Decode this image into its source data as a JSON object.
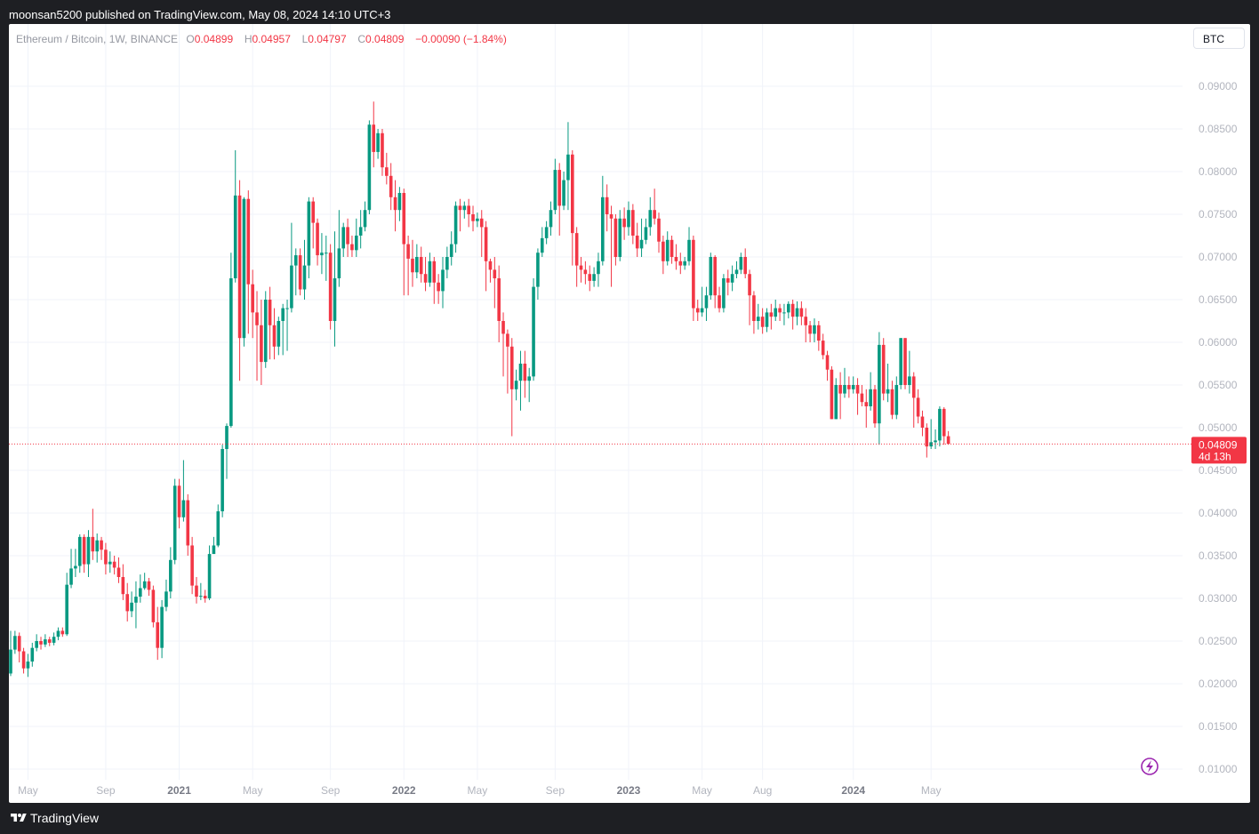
{
  "header": {
    "publisher_line": "moonsan5200 published on TradingView.com, May 08, 2024 14:10 UTC+3"
  },
  "legend": {
    "symbol": "Ethereum / Bitcoin, 1W, BINANCE",
    "open_label": "O",
    "open": "0.04899",
    "high_label": "H",
    "high": "0.04957",
    "low_label": "L",
    "low": "0.04797",
    "close_label": "C",
    "close": "0.04809",
    "change": "−0.00090 (−1.84%)"
  },
  "currency_button": "BTC",
  "price_tag": {
    "price": "0.04809",
    "countdown": "4d 13h"
  },
  "footer": {
    "brand": "TradingView"
  },
  "colors": {
    "up": "#089981",
    "down": "#f23645",
    "grid": "#f0f3fa",
    "axis_text": "#b2b5be"
  },
  "chart_data": {
    "type": "candlestick",
    "title": "Ethereum / Bitcoin, 1W, BINANCE",
    "timeframe": "1W",
    "ylim": [
      0.0088,
      0.0975
    ],
    "y_ticks": [
      "0.09000",
      "0.08500",
      "0.08000",
      "0.07500",
      "0.07000",
      "0.06500",
      "0.06000",
      "0.05500",
      "0.05000",
      "0.04500",
      "0.04000",
      "0.03500",
      "0.03000",
      "0.02500",
      "0.02000",
      "0.01500",
      "0.01000"
    ],
    "x_ticks": [
      {
        "label": "May",
        "i": 4,
        "bold": false
      },
      {
        "label": "Sep",
        "i": 22,
        "bold": false
      },
      {
        "label": "2021",
        "i": 39,
        "bold": true
      },
      {
        "label": "May",
        "i": 56,
        "bold": false
      },
      {
        "label": "Sep",
        "i": 74,
        "bold": false
      },
      {
        "label": "2022",
        "i": 91,
        "bold": true
      },
      {
        "label": "May",
        "i": 108,
        "bold": false
      },
      {
        "label": "Sep",
        "i": 126,
        "bold": false
      },
      {
        "label": "2023",
        "i": 143,
        "bold": true
      },
      {
        "label": "May",
        "i": 160,
        "bold": false
      },
      {
        "label": "Aug",
        "i": 174,
        "bold": false
      },
      {
        "label": "2024",
        "i": 195,
        "bold": true
      },
      {
        "label": "May",
        "i": 213,
        "bold": false
      }
    ],
    "last_price": 0.04809,
    "candles": [
      [
        0.0212,
        0.024,
        0.0262,
        0.0209
      ],
      [
        0.024,
        0.0256,
        0.0262,
        0.0235
      ],
      [
        0.0256,
        0.0238,
        0.026,
        0.0225
      ],
      [
        0.0238,
        0.0218,
        0.0242,
        0.0212
      ],
      [
        0.0218,
        0.0226,
        0.0235,
        0.0208
      ],
      [
        0.0226,
        0.0242,
        0.0248,
        0.022
      ],
      [
        0.0242,
        0.025,
        0.0258,
        0.0238
      ],
      [
        0.025,
        0.0246,
        0.0255,
        0.024
      ],
      [
        0.0246,
        0.0252,
        0.0258,
        0.0243
      ],
      [
        0.0252,
        0.0248,
        0.0255,
        0.0244
      ],
      [
        0.0248,
        0.0255,
        0.026,
        0.0245
      ],
      [
        0.0255,
        0.0262,
        0.0266,
        0.0251
      ],
      [
        0.0262,
        0.0258,
        0.0266,
        0.0255
      ],
      [
        0.0258,
        0.0316,
        0.033,
        0.0256
      ],
      [
        0.0316,
        0.0335,
        0.0358,
        0.0312
      ],
      [
        0.0335,
        0.0338,
        0.0358,
        0.0325
      ],
      [
        0.0338,
        0.0372,
        0.0375,
        0.033
      ],
      [
        0.0372,
        0.034,
        0.0375,
        0.033
      ],
      [
        0.034,
        0.0372,
        0.038,
        0.0325
      ],
      [
        0.0372,
        0.0355,
        0.0405,
        0.0345
      ],
      [
        0.0355,
        0.0368,
        0.0376,
        0.0342
      ],
      [
        0.0368,
        0.0357,
        0.0372,
        0.0345
      ],
      [
        0.0357,
        0.034,
        0.0365,
        0.0328
      ],
      [
        0.034,
        0.0343,
        0.0355,
        0.033
      ],
      [
        0.0343,
        0.0336,
        0.035,
        0.0328
      ],
      [
        0.0336,
        0.0325,
        0.0348,
        0.0318
      ],
      [
        0.0325,
        0.0305,
        0.034,
        0.0298
      ],
      [
        0.0305,
        0.0285,
        0.0318,
        0.0273
      ],
      [
        0.0285,
        0.0295,
        0.0308,
        0.0278
      ],
      [
        0.0295,
        0.0302,
        0.032,
        0.0265
      ],
      [
        0.0302,
        0.0312,
        0.0328,
        0.0295
      ],
      [
        0.0312,
        0.032,
        0.033,
        0.031
      ],
      [
        0.032,
        0.031,
        0.0324,
        0.0303
      ],
      [
        0.031,
        0.0272,
        0.0315,
        0.0266
      ],
      [
        0.0272,
        0.0242,
        0.029,
        0.0228
      ],
      [
        0.0242,
        0.029,
        0.0298,
        0.023
      ],
      [
        0.029,
        0.0308,
        0.0322,
        0.0285
      ],
      [
        0.0308,
        0.0345,
        0.036,
        0.03
      ],
      [
        0.0345,
        0.0432,
        0.044,
        0.034
      ],
      [
        0.0432,
        0.0395,
        0.044,
        0.0382
      ],
      [
        0.0395,
        0.0415,
        0.0462,
        0.039
      ],
      [
        0.0415,
        0.0362,
        0.0422,
        0.035
      ],
      [
        0.0362,
        0.0315,
        0.0372,
        0.0305
      ],
      [
        0.0315,
        0.0302,
        0.0325,
        0.0294
      ],
      [
        0.0302,
        0.0303,
        0.0318,
        0.0298
      ],
      [
        0.0303,
        0.03,
        0.031,
        0.0295
      ],
      [
        0.03,
        0.0352,
        0.0362,
        0.0298
      ],
      [
        0.0352,
        0.0362,
        0.0372,
        0.0355
      ],
      [
        0.0362,
        0.0402,
        0.041,
        0.036
      ],
      [
        0.0402,
        0.0475,
        0.048,
        0.0395
      ],
      [
        0.0475,
        0.0502,
        0.0505,
        0.044
      ],
      [
        0.0502,
        0.0675,
        0.0705,
        0.05
      ],
      [
        0.0675,
        0.0772,
        0.0825,
        0.067
      ],
      [
        0.0772,
        0.0605,
        0.079,
        0.0555
      ],
      [
        0.0605,
        0.0768,
        0.077,
        0.0595
      ],
      [
        0.0768,
        0.0668,
        0.0778,
        0.061
      ],
      [
        0.0668,
        0.0635,
        0.0685,
        0.0605
      ],
      [
        0.0635,
        0.062,
        0.066,
        0.0555
      ],
      [
        0.062,
        0.0577,
        0.065,
        0.055
      ],
      [
        0.0577,
        0.065,
        0.066,
        0.057
      ],
      [
        0.065,
        0.062,
        0.0665,
        0.058
      ],
      [
        0.062,
        0.0595,
        0.064,
        0.058
      ],
      [
        0.0595,
        0.0625,
        0.063,
        0.0585
      ],
      [
        0.0625,
        0.064,
        0.0645,
        0.0585
      ],
      [
        0.064,
        0.064,
        0.065,
        0.059
      ],
      [
        0.064,
        0.069,
        0.074,
        0.0635
      ],
      [
        0.069,
        0.0702,
        0.071,
        0.0655
      ],
      [
        0.0702,
        0.0662,
        0.071,
        0.0655
      ],
      [
        0.0662,
        0.069,
        0.072,
        0.065
      ],
      [
        0.069,
        0.0765,
        0.077,
        0.0675
      ],
      [
        0.0765,
        0.074,
        0.077,
        0.071
      ],
      [
        0.074,
        0.0702,
        0.0745,
        0.069
      ],
      [
        0.0702,
        0.0705,
        0.0728,
        0.068
      ],
      [
        0.0705,
        0.0705,
        0.0725,
        0.0672
      ],
      [
        0.0705,
        0.0625,
        0.0715,
        0.0615
      ],
      [
        0.0625,
        0.0675,
        0.073,
        0.0595
      ],
      [
        0.0675,
        0.071,
        0.0755,
        0.0665
      ],
      [
        0.071,
        0.0735,
        0.074,
        0.07
      ],
      [
        0.0735,
        0.0715,
        0.0745,
        0.07
      ],
      [
        0.0715,
        0.0708,
        0.0725,
        0.07
      ],
      [
        0.0708,
        0.0725,
        0.0745,
        0.07
      ],
      [
        0.0725,
        0.0735,
        0.0755,
        0.071
      ],
      [
        0.0735,
        0.0755,
        0.0765,
        0.073
      ],
      [
        0.0755,
        0.0855,
        0.086,
        0.075
      ],
      [
        0.0855,
        0.0823,
        0.0882,
        0.0805
      ],
      [
        0.0823,
        0.0845,
        0.085,
        0.0815
      ],
      [
        0.0845,
        0.0805,
        0.085,
        0.0795
      ],
      [
        0.0805,
        0.0795,
        0.0822,
        0.0785
      ],
      [
        0.0795,
        0.077,
        0.081,
        0.0755
      ],
      [
        0.077,
        0.0755,
        0.079,
        0.073
      ],
      [
        0.0755,
        0.0775,
        0.0782,
        0.0742
      ],
      [
        0.0775,
        0.0715,
        0.078,
        0.0655
      ],
      [
        0.0715,
        0.0698,
        0.0725,
        0.0655
      ],
      [
        0.0698,
        0.0682,
        0.072,
        0.0665
      ],
      [
        0.0682,
        0.07,
        0.0715,
        0.0675
      ],
      [
        0.07,
        0.068,
        0.0712,
        0.067
      ],
      [
        0.068,
        0.067,
        0.07,
        0.066
      ],
      [
        0.067,
        0.0695,
        0.0705,
        0.0665
      ],
      [
        0.0695,
        0.067,
        0.07,
        0.0645
      ],
      [
        0.067,
        0.066,
        0.068,
        0.0645
      ],
      [
        0.066,
        0.0685,
        0.07,
        0.064
      ],
      [
        0.0685,
        0.07,
        0.0712,
        0.0675
      ],
      [
        0.07,
        0.0715,
        0.073,
        0.069
      ],
      [
        0.0715,
        0.076,
        0.0765,
        0.0705
      ],
      [
        0.076,
        0.0755,
        0.0768,
        0.073
      ],
      [
        0.0755,
        0.076,
        0.0765,
        0.0745
      ],
      [
        0.076,
        0.075,
        0.0768,
        0.0735
      ],
      [
        0.075,
        0.0742,
        0.076,
        0.073
      ],
      [
        0.0742,
        0.0745,
        0.0752,
        0.0735
      ],
      [
        0.0745,
        0.0735,
        0.0755,
        0.07
      ],
      [
        0.0735,
        0.0695,
        0.0742,
        0.066
      ],
      [
        0.0695,
        0.0685,
        0.0698,
        0.067
      ],
      [
        0.0685,
        0.0675,
        0.07,
        0.064
      ],
      [
        0.0675,
        0.0625,
        0.069,
        0.06
      ],
      [
        0.0625,
        0.061,
        0.0635,
        0.056
      ],
      [
        0.061,
        0.0595,
        0.0615,
        0.054
      ],
      [
        0.0595,
        0.0545,
        0.0605,
        0.049
      ],
      [
        0.0545,
        0.0555,
        0.0568,
        0.0532
      ],
      [
        0.0555,
        0.0575,
        0.059,
        0.052
      ],
      [
        0.0575,
        0.0555,
        0.059,
        0.0535
      ],
      [
        0.0555,
        0.056,
        0.057,
        0.053
      ],
      [
        0.056,
        0.0665,
        0.0675,
        0.0555
      ],
      [
        0.0665,
        0.0705,
        0.071,
        0.065
      ],
      [
        0.0705,
        0.0722,
        0.0735,
        0.07
      ],
      [
        0.0722,
        0.0735,
        0.0742,
        0.0715
      ],
      [
        0.0735,
        0.0755,
        0.0765,
        0.0725
      ],
      [
        0.0755,
        0.0802,
        0.0815,
        0.075
      ],
      [
        0.0802,
        0.076,
        0.081,
        0.0725
      ],
      [
        0.076,
        0.079,
        0.08,
        0.0755
      ],
      [
        0.079,
        0.082,
        0.0858,
        0.0755
      ],
      [
        0.082,
        0.0728,
        0.0825,
        0.069
      ],
      [
        0.0728,
        0.069,
        0.0735,
        0.0665
      ],
      [
        0.069,
        0.0685,
        0.07,
        0.067
      ],
      [
        0.0685,
        0.068,
        0.0695,
        0.0668
      ],
      [
        0.068,
        0.0672,
        0.069,
        0.066
      ],
      [
        0.0672,
        0.068,
        0.0688,
        0.0665
      ],
      [
        0.068,
        0.0695,
        0.0705,
        0.0665
      ],
      [
        0.0695,
        0.077,
        0.0795,
        0.069
      ],
      [
        0.077,
        0.075,
        0.0785,
        0.073
      ],
      [
        0.075,
        0.0745,
        0.076,
        0.0665
      ],
      [
        0.0745,
        0.07,
        0.075,
        0.069
      ],
      [
        0.07,
        0.0745,
        0.0755,
        0.0695
      ],
      [
        0.0745,
        0.0735,
        0.0758,
        0.072
      ],
      [
        0.0735,
        0.0755,
        0.0765,
        0.0725
      ],
      [
        0.0755,
        0.0725,
        0.0762,
        0.0715
      ],
      [
        0.0725,
        0.071,
        0.074,
        0.07
      ],
      [
        0.071,
        0.072,
        0.0745,
        0.07
      ],
      [
        0.072,
        0.0735,
        0.0745,
        0.0715
      ],
      [
        0.0735,
        0.0755,
        0.077,
        0.0725
      ],
      [
        0.0755,
        0.0745,
        0.078,
        0.0738
      ],
      [
        0.0745,
        0.0718,
        0.0752,
        0.0705
      ],
      [
        0.0718,
        0.0695,
        0.0725,
        0.068
      ],
      [
        0.0695,
        0.072,
        0.073,
        0.069
      ],
      [
        0.072,
        0.07,
        0.0725,
        0.0692
      ],
      [
        0.07,
        0.0695,
        0.0715,
        0.0685
      ],
      [
        0.0695,
        0.069,
        0.0705,
        0.068
      ],
      [
        0.069,
        0.0695,
        0.07,
        0.0685
      ],
      [
        0.0695,
        0.072,
        0.0735,
        0.069
      ],
      [
        0.072,
        0.064,
        0.0725,
        0.0625
      ],
      [
        0.064,
        0.0635,
        0.065,
        0.0625
      ],
      [
        0.0635,
        0.064,
        0.0665,
        0.063
      ],
      [
        0.064,
        0.0655,
        0.0665,
        0.0625
      ],
      [
        0.0655,
        0.07,
        0.0705,
        0.065
      ],
      [
        0.07,
        0.0655,
        0.0702,
        0.064
      ],
      [
        0.0655,
        0.064,
        0.0665,
        0.0635
      ],
      [
        0.064,
        0.0675,
        0.068,
        0.0635
      ],
      [
        0.0675,
        0.067,
        0.0685,
        0.0655
      ],
      [
        0.067,
        0.068,
        0.069,
        0.066
      ],
      [
        0.068,
        0.0685,
        0.0695,
        0.0675
      ],
      [
        0.0685,
        0.07,
        0.0705,
        0.068
      ],
      [
        0.07,
        0.068,
        0.071,
        0.0675
      ],
      [
        0.068,
        0.0655,
        0.0685,
        0.062
      ],
      [
        0.0655,
        0.0625,
        0.066,
        0.061
      ],
      [
        0.0625,
        0.063,
        0.0645,
        0.0615
      ],
      [
        0.063,
        0.0618,
        0.064,
        0.061
      ],
      [
        0.0618,
        0.0635,
        0.064,
        0.0612
      ],
      [
        0.0635,
        0.063,
        0.0645,
        0.0615
      ],
      [
        0.063,
        0.064,
        0.065,
        0.0625
      ],
      [
        0.064,
        0.0635,
        0.0645,
        0.0625
      ],
      [
        0.0635,
        0.0635,
        0.0645,
        0.062
      ],
      [
        0.0635,
        0.0645,
        0.0648,
        0.0628
      ],
      [
        0.0645,
        0.063,
        0.065,
        0.0615
      ],
      [
        0.063,
        0.064,
        0.0648,
        0.062
      ],
      [
        0.064,
        0.063,
        0.0648,
        0.062
      ],
      [
        0.063,
        0.062,
        0.064,
        0.06
      ],
      [
        0.062,
        0.061,
        0.0625,
        0.06
      ],
      [
        0.061,
        0.062,
        0.0628,
        0.06
      ],
      [
        0.062,
        0.0602,
        0.0625,
        0.059
      ],
      [
        0.0602,
        0.0585,
        0.061,
        0.058
      ],
      [
        0.0585,
        0.0568,
        0.059,
        0.0555
      ],
      [
        0.0568,
        0.051,
        0.0572,
        0.051
      ],
      [
        0.051,
        0.055,
        0.0558,
        0.051
      ],
      [
        0.055,
        0.054,
        0.0565,
        0.051
      ],
      [
        0.054,
        0.055,
        0.057,
        0.0535
      ],
      [
        0.055,
        0.0545,
        0.056,
        0.0535
      ],
      [
        0.0545,
        0.055,
        0.056,
        0.054
      ],
      [
        0.055,
        0.054,
        0.0558,
        0.0515
      ],
      [
        0.054,
        0.053,
        0.055,
        0.0525
      ],
      [
        0.053,
        0.0525,
        0.0545,
        0.05
      ],
      [
        0.0525,
        0.0545,
        0.0565,
        0.052
      ],
      [
        0.0545,
        0.0505,
        0.055,
        0.05
      ],
      [
        0.0505,
        0.0597,
        0.0612,
        0.048
      ],
      [
        0.0597,
        0.054,
        0.0605,
        0.0532
      ],
      [
        0.054,
        0.0545,
        0.0575,
        0.053
      ],
      [
        0.0545,
        0.0515,
        0.0555,
        0.051
      ],
      [
        0.0515,
        0.055,
        0.056,
        0.051
      ],
      [
        0.055,
        0.0605,
        0.0605,
        0.0545
      ],
      [
        0.0605,
        0.055,
        0.0605,
        0.0545
      ],
      [
        0.055,
        0.056,
        0.059,
        0.054
      ],
      [
        0.056,
        0.0535,
        0.0565,
        0.05
      ],
      [
        0.0535,
        0.0513,
        0.0545,
        0.0505
      ],
      [
        0.0513,
        0.05,
        0.052,
        0.049
      ],
      [
        0.05,
        0.0478,
        0.0505,
        0.0465
      ],
      [
        0.0478,
        0.0483,
        0.051,
        0.0475
      ],
      [
        0.0483,
        0.0485,
        0.0498,
        0.0475
      ],
      [
        0.0485,
        0.0522,
        0.0525,
        0.0478
      ],
      [
        0.0522,
        0.049,
        0.0524,
        0.048
      ],
      [
        0.049,
        0.0481,
        0.0496,
        0.048
      ]
    ]
  }
}
